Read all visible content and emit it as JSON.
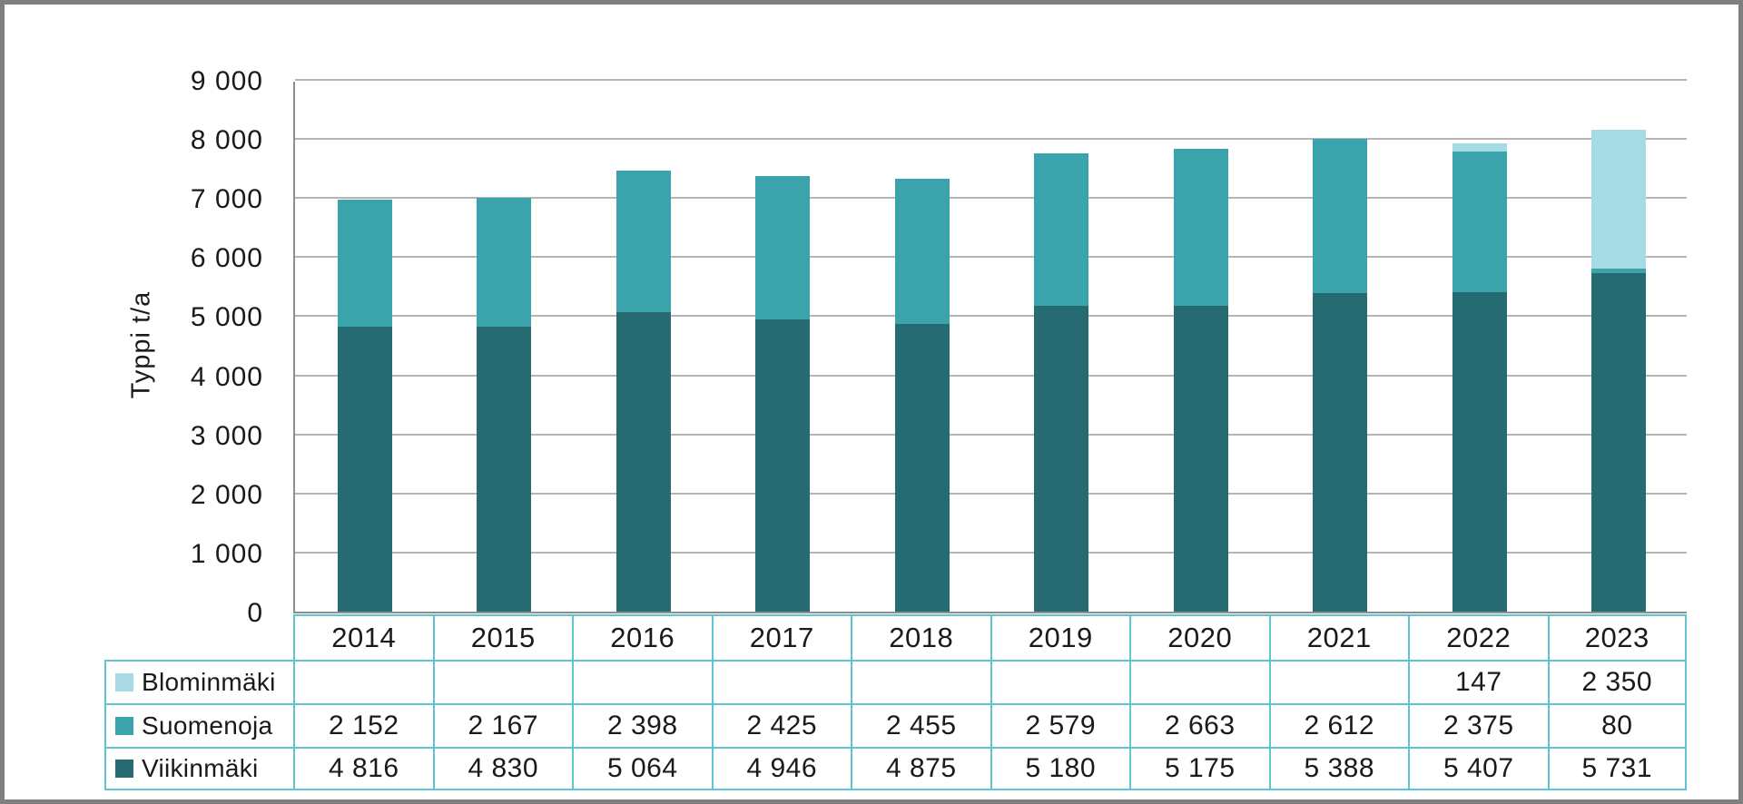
{
  "chart_data": {
    "type": "bar",
    "stacked": true,
    "title": "",
    "xlabel": "",
    "ylabel": "Typpi t/a",
    "ylim": [
      0,
      9000
    ],
    "ytick_interval": 1000,
    "ytick_labels": [
      "0",
      "1 000",
      "2 000",
      "3 000",
      "4 000",
      "5 000",
      "6 000",
      "7 000",
      "8 000",
      "9 000"
    ],
    "grid": true,
    "legend_position": "table-left",
    "categories": [
      "2014",
      "2015",
      "2016",
      "2017",
      "2018",
      "2019",
      "2020",
      "2021",
      "2022",
      "2023"
    ],
    "series": [
      {
        "name": "Blominmäki",
        "color": "#a6dbe3",
        "values": [
          null,
          null,
          null,
          null,
          null,
          null,
          null,
          null,
          147,
          2350
        ],
        "cells": [
          "",
          "",
          "",
          "",
          "",
          "",
          "",
          "",
          "147",
          "2 350"
        ]
      },
      {
        "name": "Suomenoja",
        "color": "#3ba3ac",
        "values": [
          2152,
          2167,
          2398,
          2425,
          2455,
          2579,
          2663,
          2612,
          2375,
          80
        ],
        "cells": [
          "2 152",
          "2 167",
          "2 398",
          "2 425",
          "2 455",
          "2 579",
          "2 663",
          "2 612",
          "2 375",
          "80"
        ]
      },
      {
        "name": "Viikinmäki",
        "color": "#276b72",
        "values": [
          4816,
          4830,
          5064,
          4946,
          4875,
          5180,
          5175,
          5388,
          5407,
          5731
        ],
        "cells": [
          "4 816",
          "4 830",
          "5 064",
          "4 946",
          "4 875",
          "5 180",
          "5 175",
          "5 388",
          "5 407",
          "5 731"
        ]
      }
    ],
    "colors": {
      "gridline": "#b5b5b5",
      "axis_line": "#8e8e8e",
      "table_border": "#5cc5cf",
      "frame_border": "#7f7f7f",
      "text": "#1a1a1a"
    }
  }
}
